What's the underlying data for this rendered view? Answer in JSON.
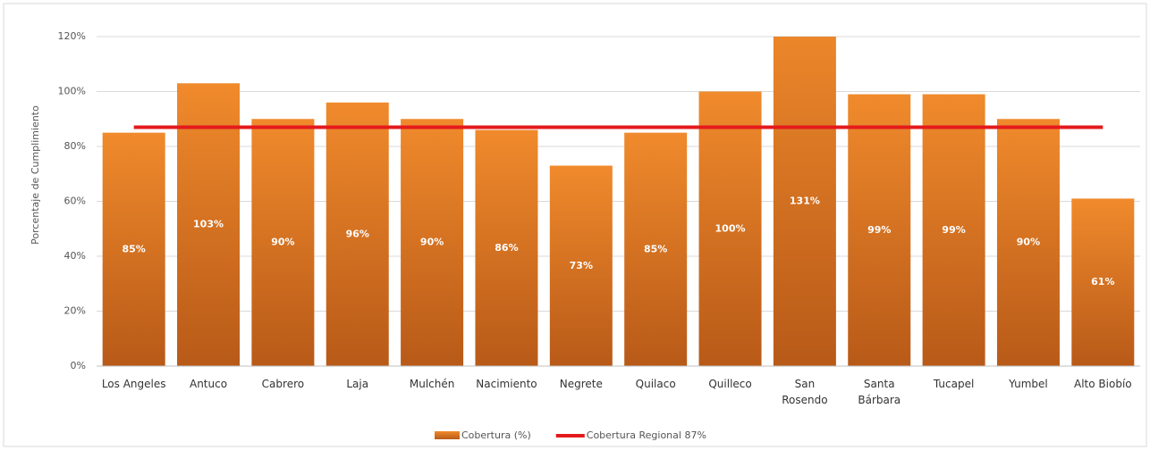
{
  "chart_data": {
    "type": "bar",
    "y_axis_label": "Porcentaje de Cumplimiento",
    "categories": [
      "Los Angeles",
      "Antuco",
      "Cabrero",
      "Laja",
      "Mulchén",
      "Nacimiento",
      "Negrete",
      "Quilaco",
      "Quilleco",
      "San\nRosendo",
      "Santa\nBárbara",
      "Tucapel",
      "Yumbel",
      "Alto Biobío"
    ],
    "series": [
      {
        "name": "Cobertura (%)",
        "color": "#e67e22",
        "type": "bar",
        "values": [
          85,
          103,
          90,
          96,
          90,
          86,
          73,
          85,
          100,
          131,
          99,
          99,
          90,
          61
        ],
        "value_labels": [
          "85%",
          "103%",
          "90%",
          "96%",
          "90%",
          "86%",
          "73%",
          "85%",
          "100%",
          "131%",
          "99%",
          "99%",
          "90%",
          "61%"
        ]
      },
      {
        "name": "Cobertura Regional 87%",
        "color": "#e31a1c",
        "type": "line",
        "values": [
          87,
          87,
          87,
          87,
          87,
          87,
          87,
          87,
          87,
          87,
          87,
          87,
          87,
          87
        ]
      }
    ],
    "ylim": [
      0,
      120
    ],
    "yticks": [
      {
        "value": 0,
        "label": "0%"
      },
      {
        "value": 20,
        "label": "20%"
      },
      {
        "value": 40,
        "label": "40%"
      },
      {
        "value": 60,
        "label": "60%"
      },
      {
        "value": 80,
        "label": "80%"
      },
      {
        "value": 100,
        "label": "100%"
      },
      {
        "value": 120,
        "label": "120%"
      }
    ],
    "grid": true,
    "legend": "bottom"
  }
}
